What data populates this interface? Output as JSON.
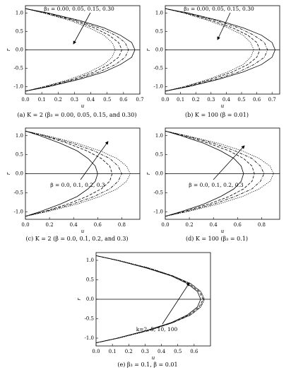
{
  "chart_data": [
    {
      "type": "line",
      "caption": "(a) K = 2 (β₃ = 0.00, 0.05, 0.15, and 0.30)",
      "annotation": "β₃ = 0.00, 0.05, 0.15, 0.30",
      "x_label": "u",
      "y_label": "r",
      "values": [
        -1.12,
        -1.0,
        -0.8,
        -0.6,
        -0.4,
        -0.2,
        0,
        0.2,
        0.4,
        0.6,
        0.8,
        1.0,
        1.12
      ],
      "series": [
        {
          "style": "solid",
          "color": "#000000",
          "x": [
            0,
            0.14,
            0.33,
            0.48,
            0.58,
            0.65,
            0.67,
            0.65,
            0.58,
            0.48,
            0.33,
            0.14,
            0
          ]
        },
        {
          "style": "dashdot",
          "color": "#000000",
          "x": [
            0,
            0.13,
            0.31,
            0.45,
            0.55,
            0.61,
            0.63,
            0.61,
            0.55,
            0.45,
            0.31,
            0.13,
            0
          ]
        },
        {
          "style": "dash",
          "color": "#000000",
          "x": [
            0,
            0.12,
            0.29,
            0.42,
            0.51,
            0.57,
            0.59,
            0.57,
            0.51,
            0.42,
            0.29,
            0.12,
            0
          ]
        },
        {
          "style": "dot",
          "color": "#000000",
          "x": [
            0,
            0.11,
            0.27,
            0.39,
            0.48,
            0.53,
            0.55,
            0.53,
            0.48,
            0.39,
            0.27,
            0.11,
            0
          ]
        }
      ],
      "xlim": [
        0,
        0.7
      ],
      "xticks": [
        {
          "value": 0,
          "label": "0.0"
        },
        0.1,
        0.2,
        0.3,
        0.4,
        0.5,
        0.6,
        0.7
      ],
      "ylim": [
        -1.2,
        1.2
      ],
      "yticks": [
        {
          "value": -1,
          "label": "-1.0"
        },
        -0.5,
        {
          "value": 0,
          "label": "0.0"
        },
        0.5,
        {
          "value": 1,
          "label": "1.0"
        }
      ]
    },
    {
      "type": "line",
      "caption": "(b) K = 100 (β = 0.01)",
      "annotation": "β₃ = 0.00, 0.05, 0.15, 0.30",
      "x_label": "u",
      "y_label": "r",
      "values": [
        -1.12,
        -1.0,
        -0.8,
        -0.6,
        -0.4,
        -0.2,
        0,
        0.2,
        0.4,
        0.6,
        0.8,
        1.0,
        1.12
      ],
      "series": [
        {
          "style": "solid",
          "color": "#000000",
          "x": [
            0,
            0.15,
            0.35,
            0.51,
            0.63,
            0.7,
            0.72,
            0.7,
            0.63,
            0.51,
            0.35,
            0.15,
            0
          ]
        },
        {
          "style": "dashdot",
          "color": "#000000",
          "x": [
            0,
            0.14,
            0.33,
            0.48,
            0.58,
            0.65,
            0.67,
            0.65,
            0.58,
            0.48,
            0.33,
            0.14,
            0
          ]
        },
        {
          "style": "dash",
          "color": "#000000",
          "x": [
            0,
            0.13,
            0.3,
            0.44,
            0.54,
            0.6,
            0.62,
            0.6,
            0.54,
            0.44,
            0.3,
            0.13,
            0
          ]
        },
        {
          "style": "dot",
          "color": "#000000",
          "x": [
            0,
            0.12,
            0.28,
            0.41,
            0.51,
            0.56,
            0.58,
            0.56,
            0.51,
            0.41,
            0.28,
            0.12,
            0
          ]
        }
      ],
      "xlim": [
        0,
        0.75
      ],
      "xticks": [
        {
          "value": 0,
          "label": "0.0"
        },
        0.1,
        0.2,
        0.3,
        0.4,
        0.5,
        0.6,
        0.7
      ],
      "ylim": [
        -1.2,
        1.2
      ],
      "yticks": [
        {
          "value": -1,
          "label": "-1.0"
        },
        -0.5,
        {
          "value": 0,
          "label": "0.0"
        },
        0.5,
        {
          "value": 1,
          "label": "1.0"
        }
      ]
    },
    {
      "type": "line",
      "caption": "(c) K = 2 (β = 0.0, 0.1, 0.2, and 0.3)",
      "annotation": "β = 0.0, 0.1, 0.2, 0.3",
      "x_label": "u",
      "y_label": "r",
      "values": [
        -1.12,
        -1.0,
        -0.8,
        -0.6,
        -0.4,
        -0.2,
        0,
        0.2,
        0.4,
        0.6,
        0.8,
        1.0,
        1.12
      ],
      "series": [
        {
          "style": "solid",
          "color": "#000000",
          "x": [
            0,
            0.12,
            0.29,
            0.43,
            0.52,
            0.58,
            0.6,
            0.58,
            0.52,
            0.43,
            0.29,
            0.12,
            0
          ]
        },
        {
          "style": "dash",
          "color": "#000000",
          "x": [
            0,
            0.15,
            0.35,
            0.51,
            0.63,
            0.7,
            0.72,
            0.7,
            0.63,
            0.51,
            0.35,
            0.15,
            0
          ]
        },
        {
          "style": "dashdot",
          "color": "#000000",
          "x": [
            0,
            0.16,
            0.39,
            0.57,
            0.7,
            0.77,
            0.8,
            0.77,
            0.7,
            0.57,
            0.39,
            0.16,
            0
          ]
        },
        {
          "style": "dot",
          "color": "#000000",
          "x": [
            0,
            0.18,
            0.43,
            0.62,
            0.76,
            0.84,
            0.87,
            0.84,
            0.76,
            0.62,
            0.43,
            0.18,
            0
          ]
        }
      ],
      "xlim": [
        0,
        0.95
      ],
      "xticks": [
        {
          "value": 0,
          "label": "0.0"
        },
        0.2,
        0.4,
        0.6,
        0.8
      ],
      "ylim": [
        -1.2,
        1.2
      ],
      "yticks": [
        {
          "value": -1,
          "label": "-1.0"
        },
        -0.5,
        {
          "value": 0,
          "label": "0.0"
        },
        0.5,
        {
          "value": 1,
          "label": "1.0"
        }
      ]
    },
    {
      "type": "line",
      "caption": "(d) K = 100 (β₃ = 0.1)",
      "annotation": "β = 0.0, 0.1, 0.2, 0.3",
      "x_label": "u",
      "y_label": "r",
      "values": [
        -1.12,
        -1.0,
        -0.8,
        -0.6,
        -0.4,
        -0.2,
        0,
        0.2,
        0.4,
        0.6,
        0.8,
        1.0,
        1.12
      ],
      "series": [
        {
          "style": "solid",
          "color": "#000000",
          "x": [
            0,
            0.13,
            0.32,
            0.46,
            0.57,
            0.63,
            0.65,
            0.63,
            0.57,
            0.46,
            0.32,
            0.13,
            0
          ]
        },
        {
          "style": "dash",
          "color": "#000000",
          "x": [
            0,
            0.15,
            0.36,
            0.53,
            0.65,
            0.72,
            0.74,
            0.72,
            0.65,
            0.53,
            0.36,
            0.15,
            0
          ]
        },
        {
          "style": "dashdot",
          "color": "#000000",
          "x": [
            0,
            0.17,
            0.4,
            0.58,
            0.72,
            0.79,
            0.82,
            0.79,
            0.72,
            0.58,
            0.4,
            0.17,
            0
          ]
        },
        {
          "style": "dot",
          "color": "#000000",
          "x": [
            0,
            0.18,
            0.44,
            0.64,
            0.78,
            0.87,
            0.9,
            0.87,
            0.78,
            0.64,
            0.44,
            0.18,
            0
          ]
        }
      ],
      "xlim": [
        0,
        0.95
      ],
      "xticks": [
        {
          "value": 0,
          "label": "0.0"
        },
        0.2,
        0.4,
        0.6,
        0.8
      ],
      "ylim": [
        -1.2,
        1.2
      ],
      "yticks": [
        {
          "value": -1,
          "label": "-1.0"
        },
        -0.5,
        {
          "value": 0,
          "label": "0.0"
        },
        0.5,
        {
          "value": 1,
          "label": "1.0"
        }
      ]
    },
    {
      "type": "line",
      "caption": "(e) β₃ = 0.1, β = 0.01",
      "annotation": "k=2, 5, 10, 100",
      "x_label": "u",
      "y_label": "r",
      "values": [
        -1.12,
        -1.0,
        -0.8,
        -0.6,
        -0.4,
        -0.2,
        0,
        0.2,
        0.4,
        0.6,
        0.8,
        1.0,
        1.12
      ],
      "series": [
        {
          "style": "solid",
          "color": "#000000",
          "x": [
            0,
            0.13,
            0.31,
            0.46,
            0.56,
            0.62,
            0.64,
            0.62,
            0.56,
            0.46,
            0.31,
            0.13,
            0
          ]
        },
        {
          "style": "dash",
          "color": "#000000",
          "x": [
            0,
            0.13,
            0.32,
            0.47,
            0.57,
            0.63,
            0.655,
            0.63,
            0.57,
            0.47,
            0.32,
            0.13,
            0
          ]
        },
        {
          "style": "dashdot",
          "color": "#000000",
          "x": [
            0,
            0.13,
            0.32,
            0.47,
            0.58,
            0.64,
            0.66,
            0.64,
            0.58,
            0.47,
            0.32,
            0.13,
            0
          ]
        },
        {
          "style": "dot",
          "color": "#000000",
          "x": [
            0,
            0.14,
            0.33,
            0.47,
            0.58,
            0.64,
            0.665,
            0.64,
            0.58,
            0.47,
            0.33,
            0.14,
            0
          ]
        }
      ],
      "xlim": [
        0,
        0.7
      ],
      "xticks": [
        {
          "value": 0,
          "label": "0.0"
        },
        0.1,
        0.2,
        0.3,
        0.4,
        0.5,
        0.6
      ],
      "ylim": [
        -1.2,
        1.2
      ],
      "yticks": [
        {
          "value": -1,
          "label": "-1.0"
        },
        -0.5,
        {
          "value": 0,
          "label": "0.0"
        },
        0.5,
        {
          "value": 1,
          "label": "1.0"
        }
      ]
    }
  ]
}
